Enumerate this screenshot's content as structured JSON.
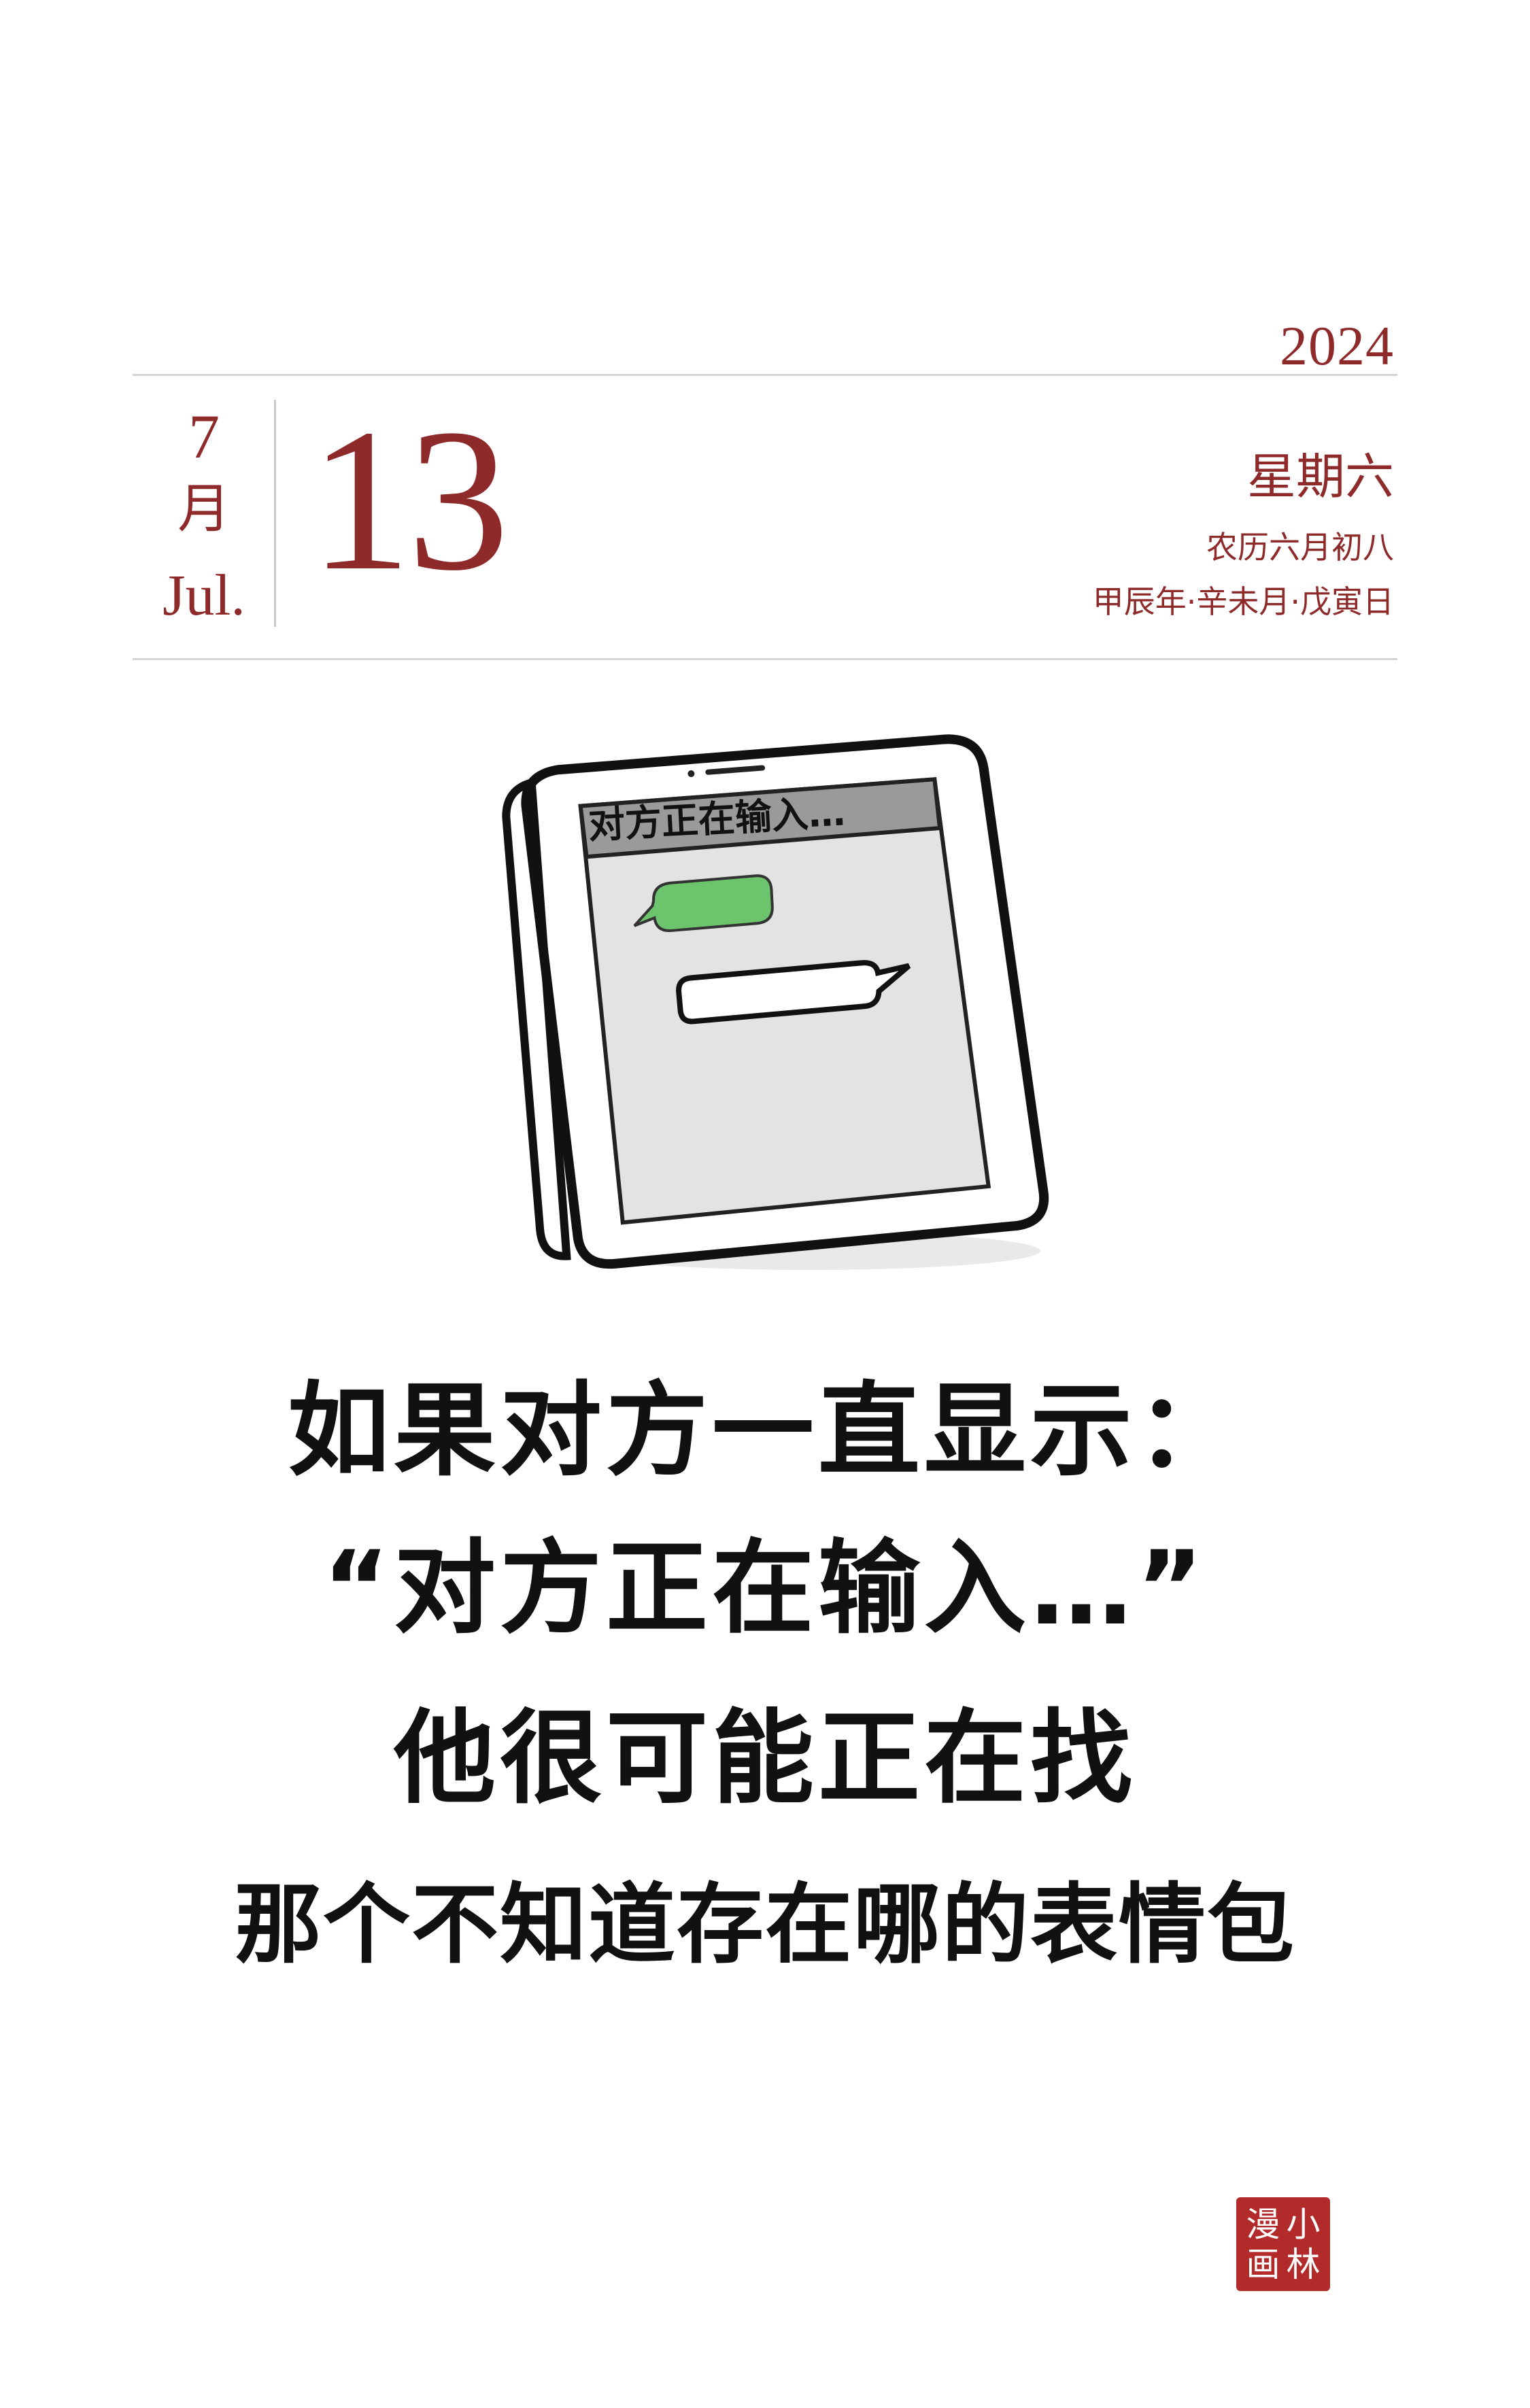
{
  "header": {
    "year": "2024",
    "month_number": "7",
    "month_cn": "月",
    "month_en": "Jul.",
    "day": "13",
    "weekday": "星期六",
    "lunar_date": "农历六月初八",
    "ganzhi": "甲辰年·辛未月·戊寅日"
  },
  "illustration": {
    "phone_header_text": "对方正在输入…",
    "colors": {
      "chat_green": "#6cc46c",
      "screen_gray": "#e6e6e6",
      "ink": "#111111"
    }
  },
  "caption": {
    "line1": "如果对方一直显示：",
    "line2": "“对方正在输入…”",
    "line3": "他很可能正在找",
    "line4": "那个不知道存在哪的表情包"
  },
  "seal": {
    "chars": [
      "小",
      "林",
      "漫",
      "画"
    ],
    "color": "#b22a2a"
  },
  "accent_color": "#8f2a2a"
}
